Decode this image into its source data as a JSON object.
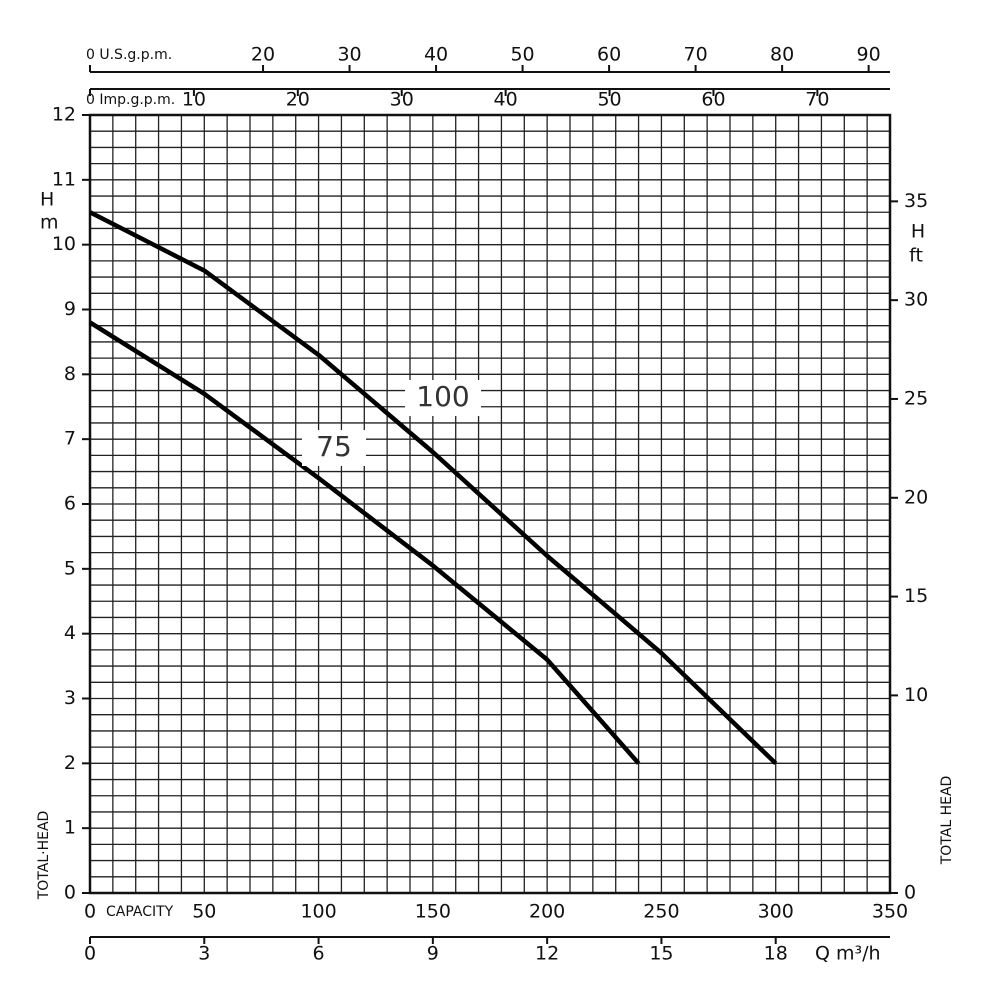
{
  "chart_data": {
    "type": "line",
    "xlabel": "CAPACITY",
    "ylabel": "TOTAL·HEAD",
    "ylabel_right": "TOTAL HEAD",
    "y_unit_symbol": "H",
    "y_unit": "m",
    "y2_unit_symbol": "H",
    "y2_unit": "ft",
    "x2_label": "Q  m³/h",
    "xlim": [
      0,
      350
    ],
    "xticks": [
      0,
      50,
      100,
      150,
      200,
      250,
      300,
      350
    ],
    "ylim": [
      0,
      12
    ],
    "yticks": [
      0,
      1,
      2,
      3,
      4,
      5,
      6,
      7,
      8,
      9,
      10,
      11,
      12
    ],
    "y2lim": [
      0,
      39.37
    ],
    "y2ticks": [
      0,
      10,
      15,
      20,
      25,
      30,
      35
    ],
    "bottom_axis": {
      "lim": [
        0,
        21
      ],
      "ticks": [
        0,
        3,
        6,
        9,
        12,
        15,
        18
      ]
    },
    "top_axes": [
      {
        "lim": [
          0,
          92.47
        ],
        "ticks": [
          {
            "value": 0,
            "label": "0 U.S.g.p.m."
          },
          20,
          30,
          40,
          50,
          60,
          70,
          80,
          90
        ]
      },
      {
        "lim": [
          0,
          76.99
        ],
        "ticks": [
          {
            "value": 0,
            "label": "0 Imp.g.p.m."
          },
          10,
          20,
          30,
          40,
          50,
          60,
          70
        ]
      }
    ],
    "grid": true,
    "series": [
      {
        "name": "100",
        "color": "#000000",
        "x": [
          0,
          50,
          100,
          150,
          200,
          250,
          300
        ],
        "values": [
          10.5,
          9.6,
          8.3,
          6.8,
          5.2,
          3.7,
          2.0
        ]
      },
      {
        "name": "75",
        "color": "#000000",
        "x": [
          0,
          50,
          100,
          150,
          200,
          240
        ],
        "values": [
          8.8,
          7.7,
          6.4,
          5.05,
          3.6,
          2.0
        ]
      }
    ]
  }
}
